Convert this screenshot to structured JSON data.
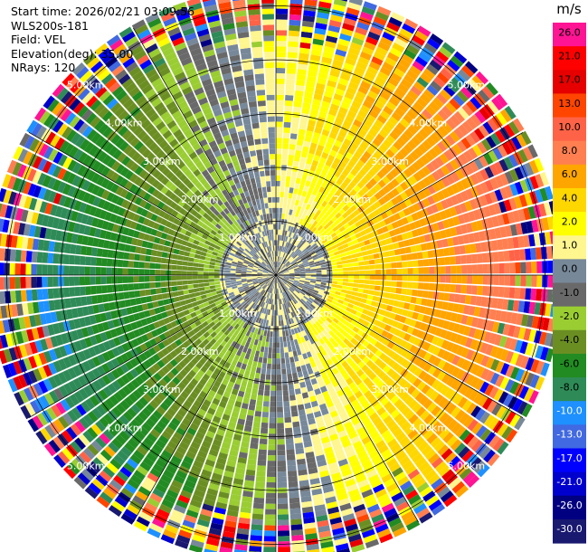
{
  "header": {
    "start_time": "Start time: 2026/02/21 03:09:56",
    "instrument": "WLS200s-181",
    "field": "Field: VEL",
    "elevation": "Elevation(deg): 35.00",
    "nrays": "NRays: 120"
  },
  "chart_data": {
    "type": "heatmap",
    "subtype": "polar-ppi",
    "field": "VEL",
    "units": "m/s",
    "n_rays": 120,
    "elevation_deg": 35.0,
    "range_rings_km": [
      1.0,
      2.0,
      3.0,
      4.0,
      5.0
    ],
    "range_ring_labels": [
      "1.00km",
      "2.00km",
      "3.00km",
      "4.00km",
      "5.00km"
    ],
    "max_range_km": 5.3,
    "colorbar": {
      "title": "m/s",
      "tick_labels": [
        "26.0",
        "21.0",
        "17.0",
        "13.0",
        "10.0",
        "8.0",
        "6.0",
        "4.0",
        "2.0",
        "1.0",
        "0.0",
        "-1.0",
        "-2.0",
        "-4.0",
        "-6.0",
        "-8.0",
        "-10.0",
        "-13.0",
        "-17.0",
        "-21.0",
        "-26.0",
        "-30.0"
      ],
      "colors": [
        "#ff1493",
        "#ff0000",
        "#e60000",
        "#ff4500",
        "#ff6347",
        "#ff7f50",
        "#ffa500",
        "#ffd700",
        "#ffff00",
        "#fff68f",
        "#778899",
        "#696969",
        "#9acd32",
        "#6b8e23",
        "#228b22",
        "#2e8b57",
        "#1e90ff",
        "#4169e1",
        "#0000ff",
        "#0000cd",
        "#000080",
        "#191970"
      ]
    },
    "velocity_pattern": {
      "near_zero_band_km": 1.0,
      "positive_sector_deg": [
        0,
        180
      ],
      "negative_sector_deg": [
        180,
        360
      ],
      "noisy_from_km": 4.2
    }
  }
}
